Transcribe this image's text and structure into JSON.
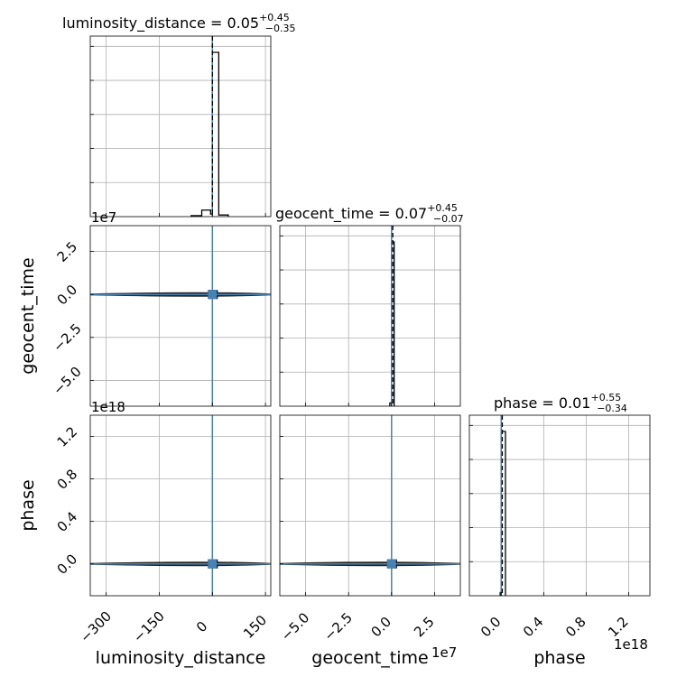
{
  "chart_data": {
    "type": "corner",
    "parameters": [
      "luminosity_distance",
      "geocent_time",
      "phase"
    ],
    "titles": [
      {
        "parameter": "luminosity_distance",
        "prefix": "luminosity_distance = 0.05",
        "plus": "+0.45",
        "minus": "−0.35"
      },
      {
        "parameter": "geocent_time",
        "prefix": "geocent_time = 0.07",
        "plus": "+0.45",
        "minus": "−0.07"
      },
      {
        "parameter": "phase",
        "prefix": "phase = 0.01",
        "plus": "+0.55",
        "minus": "−0.34"
      }
    ],
    "axes": {
      "luminosity_distance": {
        "range": [
          -345,
          165
        ],
        "ticks": [
          -300,
          -150,
          0,
          150
        ],
        "tick_labels": [
          "−300",
          "−150",
          "0",
          "150"
        ],
        "offset_label": ""
      },
      "geocent_time": {
        "range": [
          -6.5,
          4.0
        ],
        "ticks": [
          -5.0,
          -2.5,
          0.0,
          2.5
        ],
        "tick_labels": [
          "−5.0",
          "−2.5",
          "0.0",
          "2.5"
        ],
        "offset_label": "1e7"
      },
      "phase": {
        "range": [
          -0.3,
          1.4
        ],
        "ticks": [
          0.0,
          0.4,
          0.8,
          1.2
        ],
        "tick_labels": [
          "0.0",
          "0.4",
          "0.8",
          "1.2"
        ],
        "offset_label": "1e18"
      }
    },
    "histograms": [
      {
        "parameter": "luminosity_distance",
        "bins": [
          -60,
          -30,
          -5,
          0,
          18,
          45
        ],
        "heights": [
          0.006,
          0.04,
          0.015,
          1.0,
          0.01
        ]
      },
      {
        "parameter": "geocent_time",
        "bins": [
          -0.1,
          0.0,
          0.15
        ],
        "heights": [
          0.02,
          1.0
        ]
      },
      {
        "parameter": "phase",
        "bins": [
          -0.01,
          0.0,
          0.04
        ],
        "heights": [
          0.02,
          1.0
        ]
      }
    ],
    "truths": {
      "luminosity_distance": 0,
      "geocent_time": 0,
      "phase": 0
    },
    "medians": {
      "luminosity_distance": 0.05,
      "geocent_time": 0.07,
      "phase": 0.01
    },
    "truth_color": "#4682b4",
    "grid": true
  }
}
